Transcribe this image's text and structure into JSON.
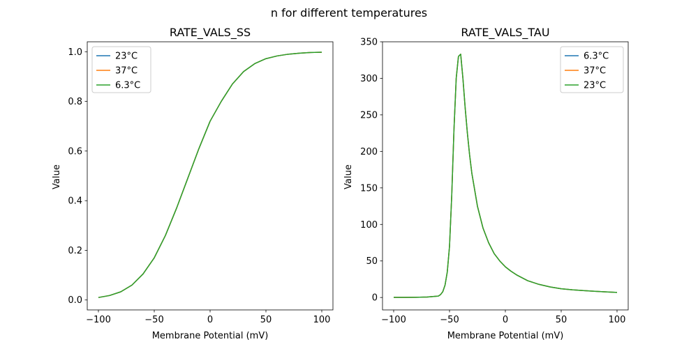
{
  "figure": {
    "suptitle": "n for different temperatures"
  },
  "chart_data": [
    {
      "type": "line",
      "title": "RATE_VALS_SS",
      "xlabel": "Membrane Potential (mV)",
      "ylabel": "Value",
      "xlim": [
        -110,
        110
      ],
      "ylim": [
        -0.04,
        1.04
      ],
      "xticks": [
        -100,
        -50,
        0,
        50,
        100
      ],
      "xtick_labels": [
        "−100",
        "−50",
        "0",
        "50",
        "100"
      ],
      "yticks": [
        0.0,
        0.2,
        0.4,
        0.6,
        0.8,
        1.0
      ],
      "ytick_labels": [
        "0.0",
        "0.2",
        "0.4",
        "0.6",
        "0.8",
        "1.0"
      ],
      "legend_position": "upper left",
      "x": [
        -100,
        -90,
        -80,
        -70,
        -60,
        -50,
        -40,
        -30,
        -20,
        -10,
        0,
        10,
        20,
        30,
        40,
        50,
        60,
        70,
        80,
        90,
        100
      ],
      "series": [
        {
          "name": "23°C",
          "color": "#1f77b4",
          "values": [
            0.01,
            0.018,
            0.033,
            0.06,
            0.105,
            0.17,
            0.26,
            0.37,
            0.49,
            0.61,
            0.72,
            0.8,
            0.87,
            0.92,
            0.952,
            0.972,
            0.983,
            0.99,
            0.994,
            0.997,
            0.998
          ]
        },
        {
          "name": "37°C",
          "color": "#ff7f0e",
          "values": [
            0.01,
            0.018,
            0.033,
            0.06,
            0.105,
            0.17,
            0.26,
            0.37,
            0.49,
            0.61,
            0.72,
            0.8,
            0.87,
            0.92,
            0.952,
            0.972,
            0.983,
            0.99,
            0.994,
            0.997,
            0.998
          ]
        },
        {
          "name": "6.3°C",
          "color": "#2ca02c",
          "values": [
            0.01,
            0.018,
            0.033,
            0.06,
            0.105,
            0.17,
            0.26,
            0.37,
            0.49,
            0.61,
            0.72,
            0.8,
            0.87,
            0.92,
            0.952,
            0.972,
            0.983,
            0.99,
            0.994,
            0.997,
            0.998
          ]
        }
      ]
    },
    {
      "type": "line",
      "title": "RATE_VALS_TAU",
      "xlabel": "Membrane Potential (mV)",
      "ylabel": "Value",
      "xlim": [
        -110,
        110
      ],
      "ylim": [
        -17,
        350
      ],
      "xticks": [
        -100,
        -50,
        0,
        50,
        100
      ],
      "xtick_labels": [
        "−100",
        "−50",
        "0",
        "50",
        "100"
      ],
      "yticks": [
        0,
        50,
        100,
        150,
        200,
        250,
        300,
        350
      ],
      "ytick_labels": [
        "0",
        "50",
        "100",
        "150",
        "200",
        "250",
        "300",
        "350"
      ],
      "legend_position": "upper right",
      "x": [
        -100,
        -90,
        -80,
        -70,
        -60,
        -58,
        -56,
        -54,
        -52,
        -50,
        -48,
        -46,
        -44,
        -42,
        -40,
        -38,
        -36,
        -34,
        -32,
        -30,
        -25,
        -20,
        -15,
        -10,
        -5,
        0,
        5,
        10,
        20,
        30,
        40,
        50,
        60,
        70,
        80,
        90,
        100
      ],
      "series": [
        {
          "name": "6.3°C",
          "color": "#1f77b4",
          "values": [
            0.2,
            0.2,
            0.3,
            0.6,
            2,
            4,
            8,
            17,
            35,
            70,
            140,
            230,
            300,
            330,
            333,
            300,
            260,
            225,
            195,
            170,
            125,
            95,
            75,
            60,
            50,
            42,
            36,
            31,
            23,
            18,
            14.5,
            12,
            10.5,
            9.5,
            8.5,
            7.7,
            7
          ]
        },
        {
          "name": "37°C",
          "color": "#ff7f0e",
          "values": [
            0.2,
            0.2,
            0.3,
            0.6,
            2,
            4,
            8,
            17,
            35,
            70,
            140,
            230,
            300,
            330,
            333,
            300,
            260,
            225,
            195,
            170,
            125,
            95,
            75,
            60,
            50,
            42,
            36,
            31,
            23,
            18,
            14.5,
            12,
            10.5,
            9.5,
            8.5,
            7.7,
            7
          ]
        },
        {
          "name": "23°C",
          "color": "#2ca02c",
          "values": [
            0.2,
            0.2,
            0.3,
            0.6,
            2,
            4,
            8,
            17,
            35,
            70,
            140,
            230,
            300,
            330,
            333,
            300,
            260,
            225,
            195,
            170,
            125,
            95,
            75,
            60,
            50,
            42,
            36,
            31,
            23,
            18,
            14.5,
            12,
            10.5,
            9.5,
            8.5,
            7.7,
            7
          ]
        }
      ]
    }
  ]
}
